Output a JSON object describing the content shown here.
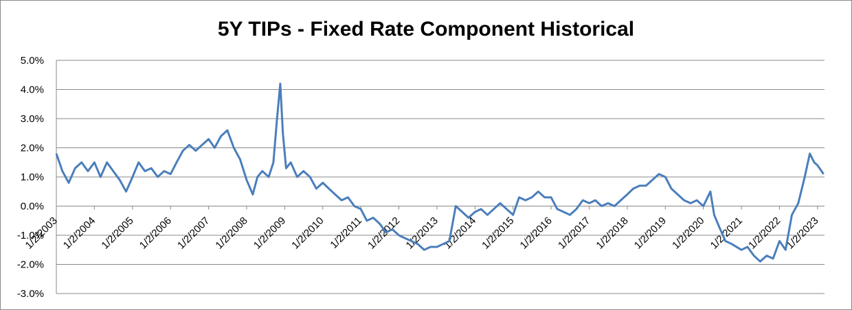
{
  "chart_data": {
    "type": "line",
    "title": "5Y TIPs - Fixed Rate Component Historical",
    "x": [
      "2003-01-02",
      "2003-03-01",
      "2003-05-01",
      "2003-07-01",
      "2003-09-01",
      "2003-11-01",
      "2004-01-02",
      "2004-03-01",
      "2004-05-01",
      "2004-07-01",
      "2004-09-01",
      "2004-11-01",
      "2005-01-02",
      "2005-03-01",
      "2005-05-01",
      "2005-07-01",
      "2005-09-01",
      "2005-11-01",
      "2006-01-02",
      "2006-03-01",
      "2006-05-01",
      "2006-07-01",
      "2006-09-01",
      "2006-11-01",
      "2007-01-02",
      "2007-03-01",
      "2007-05-01",
      "2007-07-01",
      "2007-09-01",
      "2007-11-01",
      "2008-01-02",
      "2008-03-01",
      "2008-04-15",
      "2008-06-01",
      "2008-08-01",
      "2008-09-15",
      "2008-10-20",
      "2008-11-20",
      "2008-12-15",
      "2009-01-15",
      "2009-03-01",
      "2009-05-01",
      "2009-07-01",
      "2009-09-01",
      "2009-11-01",
      "2010-01-02",
      "2010-03-01",
      "2010-05-01",
      "2010-07-01",
      "2010-09-01",
      "2010-11-01",
      "2011-01-02",
      "2011-03-01",
      "2011-05-01",
      "2011-07-01",
      "2011-09-01",
      "2011-11-01",
      "2012-01-02",
      "2012-03-01",
      "2012-05-01",
      "2012-07-01",
      "2012-09-01",
      "2012-11-01",
      "2013-01-02",
      "2013-03-01",
      "2013-05-01",
      "2013-07-01",
      "2013-09-01",
      "2013-11-01",
      "2014-01-02",
      "2014-03-01",
      "2014-05-01",
      "2014-07-01",
      "2014-09-01",
      "2014-11-01",
      "2015-01-02",
      "2015-03-01",
      "2015-05-01",
      "2015-07-01",
      "2015-09-01",
      "2015-11-01",
      "2016-01-02",
      "2016-03-01",
      "2016-05-01",
      "2016-07-01",
      "2016-09-01",
      "2016-11-01",
      "2017-01-02",
      "2017-03-01",
      "2017-05-01",
      "2017-07-01",
      "2017-09-01",
      "2017-11-01",
      "2018-01-02",
      "2018-03-01",
      "2018-05-01",
      "2018-07-01",
      "2018-09-01",
      "2018-11-01",
      "2019-01-02",
      "2019-03-01",
      "2019-05-01",
      "2019-07-01",
      "2019-09-01",
      "2019-11-01",
      "2020-01-02",
      "2020-03-10",
      "2020-04-15",
      "2020-06-01",
      "2020-08-01",
      "2020-10-01",
      "2021-01-02",
      "2021-03-01",
      "2021-05-01",
      "2021-07-01",
      "2021-09-01",
      "2021-11-01",
      "2022-01-02",
      "2022-03-01",
      "2022-05-01",
      "2022-07-01",
      "2022-09-01",
      "2022-10-20",
      "2022-12-01",
      "2023-01-02",
      "2023-03-01"
    ],
    "series": [
      {
        "name": "5Y TIPs",
        "color": "#4a7ebb",
        "values": [
          1.8,
          1.2,
          0.8,
          1.3,
          1.5,
          1.2,
          1.5,
          1.0,
          1.5,
          1.2,
          0.9,
          0.5,
          1.0,
          1.5,
          1.2,
          1.3,
          1.0,
          1.2,
          1.1,
          1.5,
          1.9,
          2.1,
          1.9,
          2.1,
          2.3,
          2.0,
          2.4,
          2.6,
          2.0,
          1.6,
          0.9,
          0.4,
          1.0,
          1.2,
          1.0,
          1.5,
          3.0,
          4.2,
          2.5,
          1.3,
          1.5,
          1.0,
          1.2,
          1.0,
          0.6,
          0.8,
          0.6,
          0.4,
          0.2,
          0.3,
          0.0,
          -0.1,
          -0.5,
          -0.4,
          -0.6,
          -0.9,
          -0.8,
          -1.0,
          -1.1,
          -1.2,
          -1.3,
          -1.5,
          -1.4,
          -1.4,
          -1.3,
          -1.2,
          0.0,
          -0.2,
          -0.4,
          -0.2,
          -0.1,
          -0.3,
          -0.1,
          0.1,
          -0.1,
          -0.3,
          0.3,
          0.2,
          0.3,
          0.5,
          0.3,
          0.3,
          -0.1,
          -0.2,
          -0.3,
          -0.1,
          0.2,
          0.1,
          0.2,
          0.0,
          0.1,
          0.0,
          0.2,
          0.4,
          0.6,
          0.7,
          0.7,
          0.9,
          1.1,
          1.0,
          0.6,
          0.4,
          0.2,
          0.1,
          0.2,
          0.0,
          0.5,
          -0.3,
          -0.7,
          -1.2,
          -1.3,
          -1.5,
          -1.4,
          -1.7,
          -1.9,
          -1.7,
          -1.8,
          -1.2,
          -1.5,
          -0.3,
          0.1,
          1.0,
          1.8,
          1.5,
          1.4,
          1.1
        ]
      }
    ],
    "xlim": [
      "2003-01-02",
      "2023-03-10"
    ],
    "xticks": [
      {
        "value": "2003-01-02",
        "label": "1/2/2003"
      },
      {
        "value": "2004-01-02",
        "label": "1/2/2004"
      },
      {
        "value": "2005-01-02",
        "label": "1/2/2005"
      },
      {
        "value": "2006-01-02",
        "label": "1/2/2006"
      },
      {
        "value": "2007-01-02",
        "label": "1/2/2007"
      },
      {
        "value": "2008-01-02",
        "label": "1/2/2008"
      },
      {
        "value": "2009-01-02",
        "label": "1/2/2009"
      },
      {
        "value": "2010-01-02",
        "label": "1/2/2010"
      },
      {
        "value": "2011-01-02",
        "label": "1/2/2011"
      },
      {
        "value": "2012-01-02",
        "label": "1/2/2012"
      },
      {
        "value": "2013-01-02",
        "label": "1/2/2013"
      },
      {
        "value": "2014-01-02",
        "label": "1/2/2014"
      },
      {
        "value": "2015-01-02",
        "label": "1/2/2015"
      },
      {
        "value": "2016-01-02",
        "label": "1/2/2016"
      },
      {
        "value": "2017-01-02",
        "label": "1/2/2017"
      },
      {
        "value": "2018-01-02",
        "label": "1/2/2018"
      },
      {
        "value": "2019-01-02",
        "label": "1/2/2019"
      },
      {
        "value": "2020-01-02",
        "label": "1/2/2020"
      },
      {
        "value": "2021-01-02",
        "label": "1/2/2021"
      },
      {
        "value": "2022-01-02",
        "label": "1/2/2022"
      },
      {
        "value": "2023-01-02",
        "label": "1/2/2023"
      }
    ],
    "ylim": [
      -3,
      5
    ],
    "yticks": [
      {
        "value": -3,
        "label": "-3.0%"
      },
      {
        "value": -2,
        "label": "-2.0%"
      },
      {
        "value": -1,
        "label": "-1.0%"
      },
      {
        "value": 0,
        "label": "0.0%"
      },
      {
        "value": 1,
        "label": "1.0%"
      },
      {
        "value": 2,
        "label": "2.0%"
      },
      {
        "value": 3,
        "label": "3.0%"
      },
      {
        "value": 4,
        "label": "4.0%"
      },
      {
        "value": 5,
        "label": "5.0%"
      }
    ],
    "grid": true
  }
}
